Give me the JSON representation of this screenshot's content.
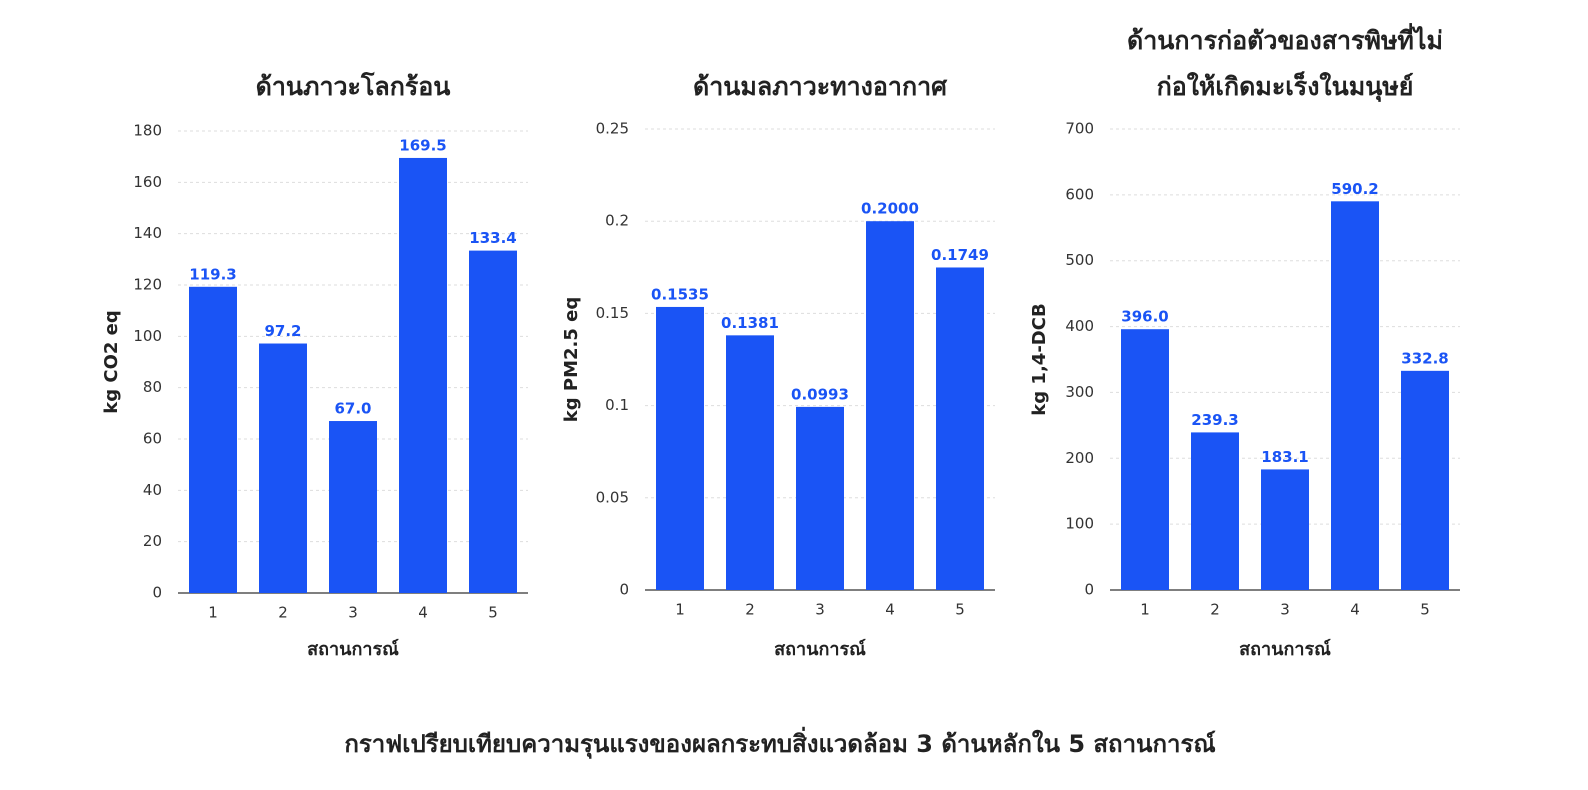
{
  "chart_data": [
    {
      "type": "bar",
      "title": "ด้านภาวะโลกร้อน",
      "x_label": "สถานการณ์",
      "y_label": "kg CO2 eq",
      "categories": [
        "1",
        "2",
        "3",
        "4",
        "5"
      ],
      "values": [
        119.3,
        97.2,
        67.0,
        169.5,
        133.4
      ],
      "value_labels": [
        "119.3",
        "97.2",
        "67.0",
        "169.5",
        "133.4"
      ],
      "color": "#1a54f5",
      "ylim": [
        0,
        180
      ],
      "yticks": [
        0,
        20,
        40,
        60,
        80,
        100,
        120,
        140,
        160,
        180
      ],
      "grid": true
    },
    {
      "type": "bar",
      "title": "ด้านมลภาวะทางอากาศ",
      "x_label": "สถานการณ์",
      "y_label": "kg PM2.5 eq",
      "categories": [
        "1",
        "2",
        "3",
        "4",
        "5"
      ],
      "values": [
        0.1535,
        0.1381,
        0.0993,
        0.2,
        0.1749
      ],
      "value_labels": [
        "0.1535",
        "0.1381",
        "0.0993",
        "0.2000",
        "0.1749"
      ],
      "color": "#1a54f5",
      "ylim": [
        0,
        0.25
      ],
      "yticks": [
        0,
        0.05,
        0.1,
        0.15,
        0.2,
        0.25
      ],
      "grid": true
    },
    {
      "type": "bar",
      "title": [
        "ด้านการก่อตัวของสารพิษที่ไม่",
        "ก่อให้เกิดมะเร็งในมนุษย์"
      ],
      "x_label": "สถานการณ์",
      "y_label": "kg 1,4-DCB",
      "categories": [
        "1",
        "2",
        "3",
        "4",
        "5"
      ],
      "values": [
        396.0,
        239.3,
        183.1,
        590.2,
        332.8
      ],
      "value_labels": [
        "396.0",
        "239.3",
        "183.1",
        "590.2",
        "332.8"
      ],
      "color": "#1a54f5",
      "ylim": [
        0,
        700
      ],
      "yticks": [
        0,
        100,
        200,
        300,
        400,
        500,
        600,
        700
      ],
      "grid": true
    }
  ],
  "caption": "กราฟเปรียบเทียบความรุนแรงของผลกระทบสิ่งแวดล้อม 3 ด้านหลักใน 5 สถานการณ์"
}
